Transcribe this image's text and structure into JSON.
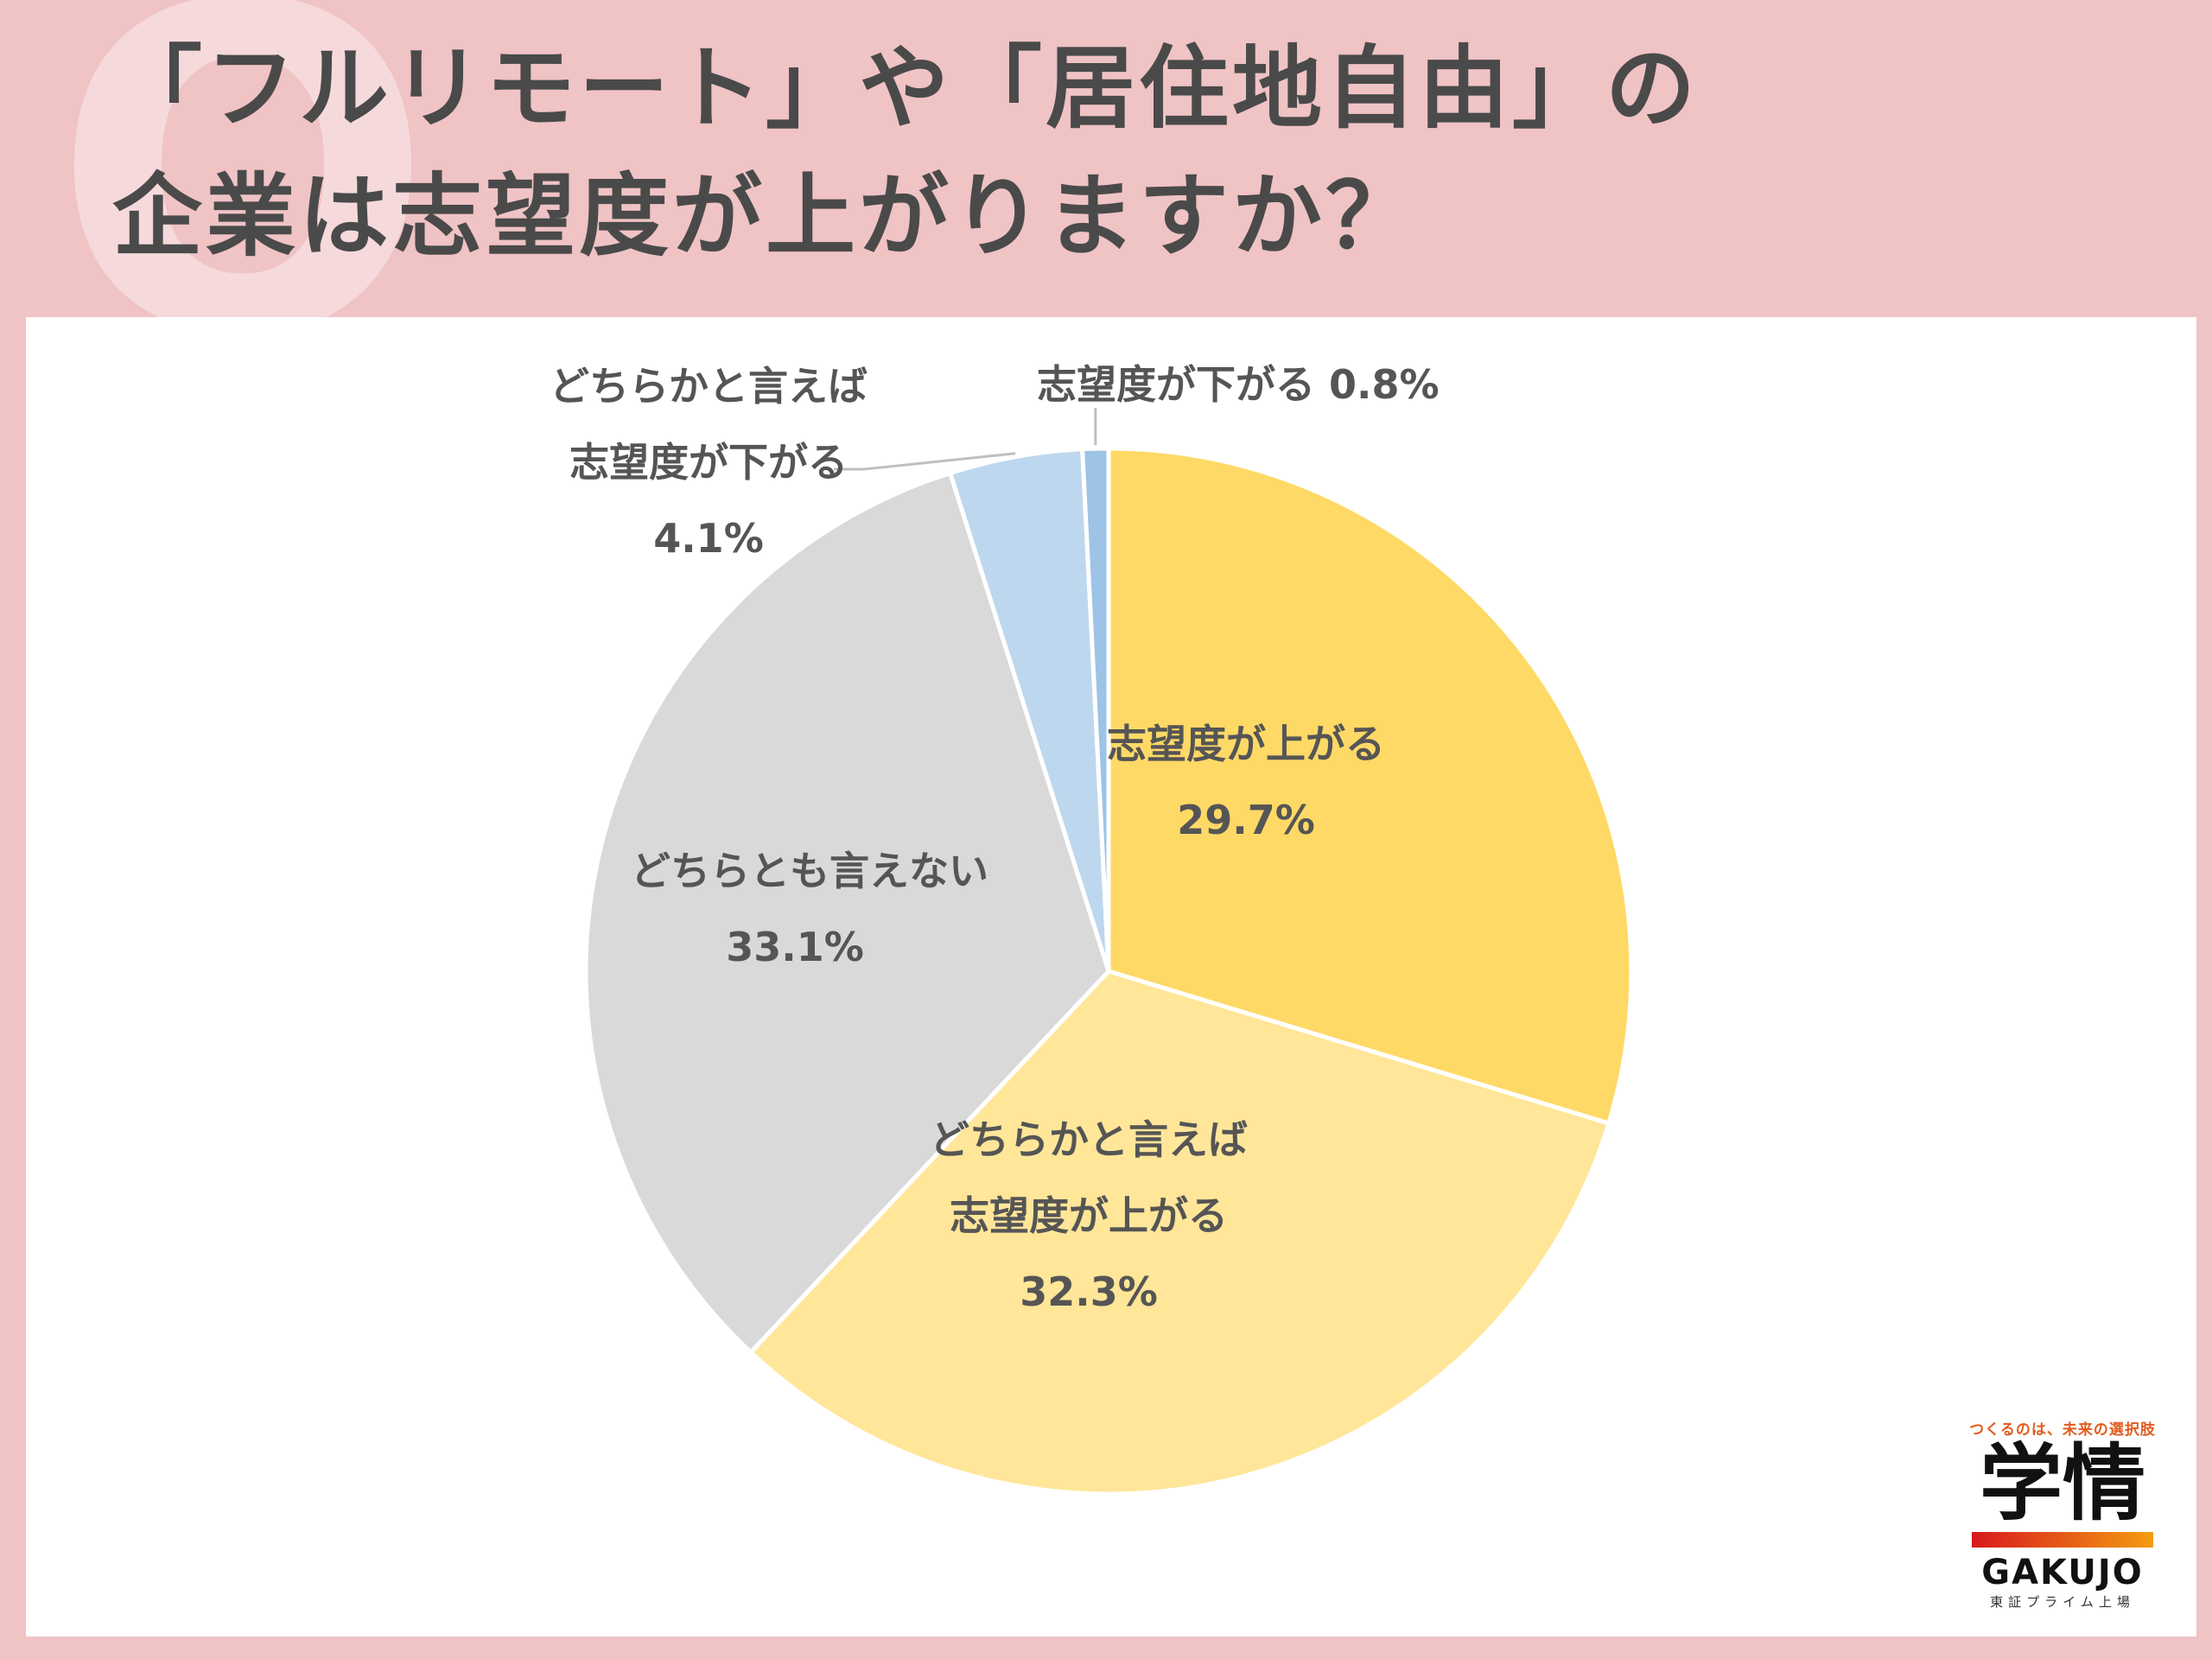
{
  "header": {
    "q_mark": "Q",
    "title_line1": "「フルリモート」や「居住地自由」の",
    "title_line2": "企業は志望度が上がりますか？"
  },
  "chart_data": {
    "type": "pie",
    "start_angle_deg": 0,
    "direction": "clockwise",
    "slices": [
      {
        "label_lines": [
          "志望度が上がる"
        ],
        "value": 29.7,
        "value_label": "29.7%",
        "color": "#ffd966"
      },
      {
        "label_lines": [
          "どちらかと言えば",
          "志望度が上がる"
        ],
        "value": 32.3,
        "value_label": "32.3%",
        "color": "#ffe699"
      },
      {
        "label_lines": [
          "どちらとも言えない"
        ],
        "value": 33.1,
        "value_label": "33.1%",
        "color": "#d9d9d9"
      },
      {
        "label_lines": [
          "どちらかと言えば",
          "志望度が下がる"
        ],
        "value": 4.1,
        "value_label": "4.1%",
        "color": "#bdd7ee"
      },
      {
        "label_lines": [
          "志望度が下がる"
        ],
        "value": 0.8,
        "value_label": "0.8%",
        "color": "#9dc3e6"
      }
    ]
  },
  "logo": {
    "tagline": "つくるのは、未来の選択肢",
    "kanji": "学情",
    "brand": "GAKUJO",
    "sub": "東証プライム上場",
    "bar_color_start": "#d7191c",
    "bar_color_end": "#f39c12"
  }
}
